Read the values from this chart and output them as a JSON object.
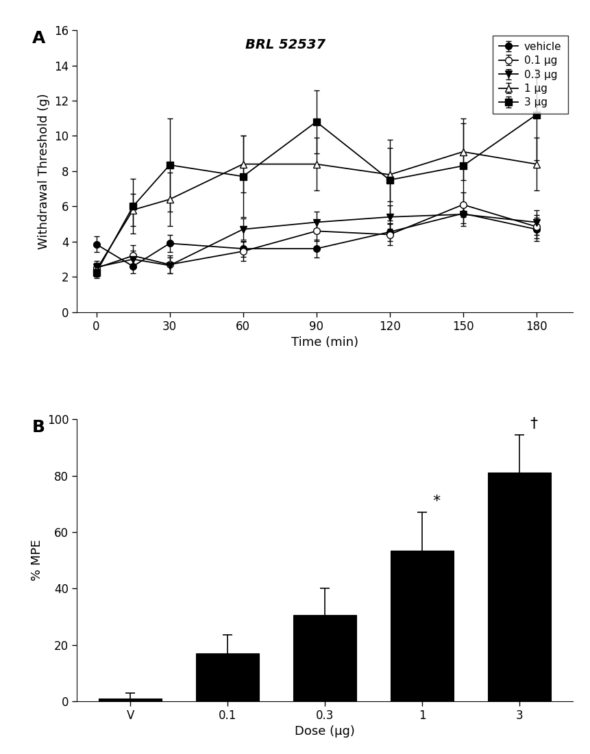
{
  "panel_A": {
    "title": "BRL 52537",
    "xlabel": "Time (min)",
    "ylabel": "Withdrawal Threshold (g)",
    "xlim": [
      -8,
      195
    ],
    "ylim": [
      0,
      16
    ],
    "yticks": [
      0,
      2,
      4,
      6,
      8,
      10,
      12,
      14,
      16
    ],
    "xticks": [
      0,
      30,
      60,
      90,
      120,
      150,
      180
    ],
    "time_points": [
      0,
      15,
      30,
      60,
      90,
      120,
      150,
      180
    ],
    "series": [
      {
        "label": "vehicle",
        "marker": "o",
        "fillstyle": "full",
        "values": [
          3.85,
          2.6,
          3.9,
          3.6,
          3.6,
          4.55,
          5.6,
          4.7
        ],
        "errors": [
          0.45,
          0.4,
          0.5,
          0.45,
          0.5,
          0.5,
          0.55,
          0.65
        ]
      },
      {
        "label": "0.1 μg",
        "marker": "o",
        "fillstyle": "none",
        "values": [
          2.5,
          3.2,
          2.7,
          3.45,
          4.6,
          4.4,
          6.1,
          4.85
        ],
        "errors": [
          0.3,
          0.6,
          0.5,
          0.55,
          0.55,
          0.6,
          0.7,
          0.65
        ]
      },
      {
        "label": "0.3 μg",
        "marker": "v",
        "fillstyle": "full",
        "values": [
          2.55,
          3.0,
          2.65,
          4.7,
          5.1,
          5.4,
          5.55,
          5.1
        ],
        "errors": [
          0.35,
          0.5,
          0.45,
          0.6,
          0.6,
          0.65,
          0.65,
          0.7
        ]
      },
      {
        "label": "1 μg",
        "marker": "^",
        "fillstyle": "none",
        "values": [
          2.4,
          5.8,
          6.4,
          8.4,
          8.4,
          7.8,
          9.1,
          8.4
        ],
        "errors": [
          0.4,
          0.9,
          1.5,
          1.6,
          1.5,
          1.5,
          1.6,
          1.5
        ]
      },
      {
        "label": "3 μg",
        "marker": "s",
        "fillstyle": "full",
        "values": [
          2.25,
          6.0,
          8.35,
          7.7,
          10.8,
          7.5,
          8.3,
          11.2
        ],
        "errors": [
          0.3,
          1.55,
          2.65,
          2.3,
          1.8,
          2.3,
          2.7,
          2.6
        ]
      }
    ]
  },
  "panel_B": {
    "xlabel": "Dose (μg)",
    "ylabel": "% MPE",
    "ylim": [
      0,
      100
    ],
    "yticks": [
      0,
      20,
      40,
      60,
      80,
      100
    ],
    "categories": [
      "V",
      "0.1",
      "0.3",
      "1",
      "3"
    ],
    "values": [
      1.0,
      17.0,
      30.5,
      53.5,
      81.0
    ],
    "errors": [
      2.0,
      6.5,
      9.5,
      13.5,
      13.5
    ],
    "bar_color": "black",
    "sig_labels": [
      "",
      "",
      "",
      "*",
      "†"
    ]
  }
}
